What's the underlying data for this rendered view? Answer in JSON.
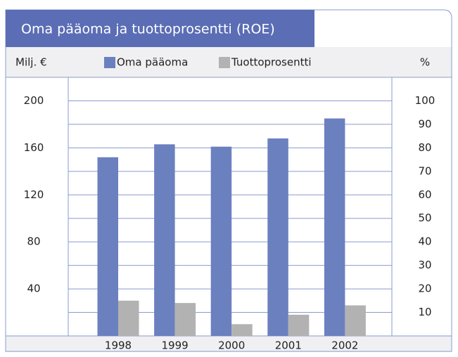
{
  "chart_data": {
    "type": "bar",
    "title": "Oma pääoma ja tuottoprosentti (ROE)",
    "y_label": "Milj. €",
    "y2_label": "%",
    "categories": [
      "1998",
      "1999",
      "2000",
      "2001",
      "2002"
    ],
    "series": [
      {
        "name": "Oma pääoma",
        "color": "#6b80bf",
        "values": [
          152,
          163,
          161,
          168,
          185
        ]
      },
      {
        "name": "Tuottoprosentti",
        "color": "#b2b2b2",
        "axis": "y2",
        "values": [
          15,
          14,
          5,
          9,
          13
        ]
      }
    ],
    "ylim": [
      0,
      220
    ],
    "yticks": [
      40,
      80,
      120,
      160,
      200
    ],
    "y2lim": [
      0,
      110
    ],
    "y2ticks": [
      10,
      20,
      30,
      40,
      50,
      60,
      70,
      80,
      90,
      100
    ],
    "grid": true
  }
}
